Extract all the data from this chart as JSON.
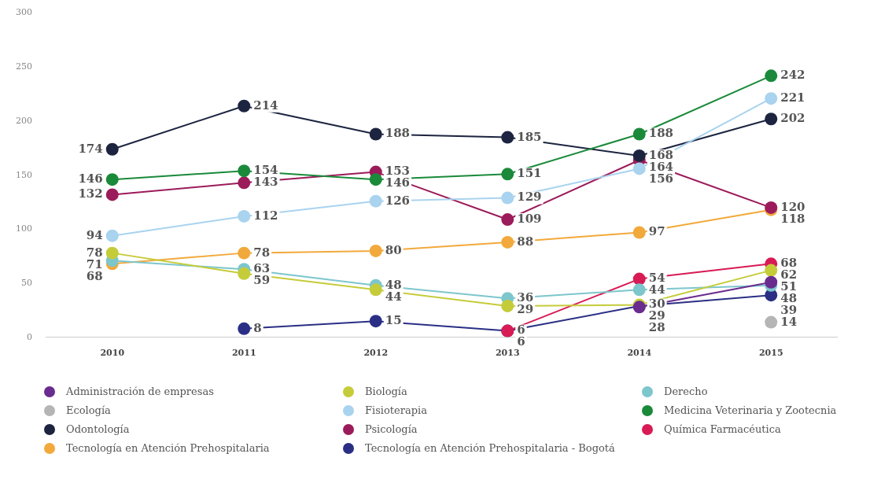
{
  "chart_data": {
    "type": "line",
    "categories": [
      "2010",
      "2011",
      "2012",
      "2013",
      "2014",
      "2015"
    ],
    "series": [
      {
        "name": "Administración de empresas",
        "color": "#6a2c8e",
        "values": [
          null,
          null,
          null,
          null,
          28,
          51
        ]
      },
      {
        "name": "Biología",
        "color": "#c5cc3a",
        "values": [
          78,
          59,
          44,
          29,
          30,
          62
        ]
      },
      {
        "name": "Derecho",
        "color": "#7cc6cc",
        "values": [
          71,
          63,
          48,
          36,
          44,
          48
        ]
      },
      {
        "name": "Ecología",
        "color": "#b5b5b5",
        "values": [
          null,
          null,
          null,
          null,
          null,
          14
        ]
      },
      {
        "name": "Fisioterapia",
        "color": "#a9d3ef",
        "values": [
          94,
          112,
          126,
          129,
          156,
          221
        ]
      },
      {
        "name": "Medicina Veterinaria y Zootecnia",
        "color": "#1a8a3a",
        "values": [
          146,
          154,
          146,
          151,
          188,
          242
        ]
      },
      {
        "name": "Odontología",
        "color": "#1c2440",
        "values": [
          174,
          214,
          188,
          185,
          168,
          202
        ]
      },
      {
        "name": "Psicología",
        "color": "#9c1b5a",
        "values": [
          132,
          143,
          153,
          109,
          164,
          120
        ]
      },
      {
        "name": "Química Farmacéutica",
        "color": "#d81b55",
        "values": [
          null,
          null,
          null,
          6,
          54,
          68
        ]
      },
      {
        "name": "Tecnología en Atención Prehospitalaria",
        "color": "#f2a93b",
        "values": [
          68,
          78,
          80,
          88,
          97,
          118
        ]
      },
      {
        "name": "Tecnología en Atención Prehospitalaria - Bogotá",
        "color": "#2a2f85",
        "values": [
          null,
          8,
          15,
          6,
          29,
          39
        ]
      }
    ],
    "ylim": [
      0,
      300
    ],
    "yticks": [
      0,
      50,
      100,
      150,
      200,
      250,
      300
    ],
    "grid": false,
    "legend": "bottom",
    "marker": "circle",
    "line_style": "solid",
    "data_labels": true
  }
}
